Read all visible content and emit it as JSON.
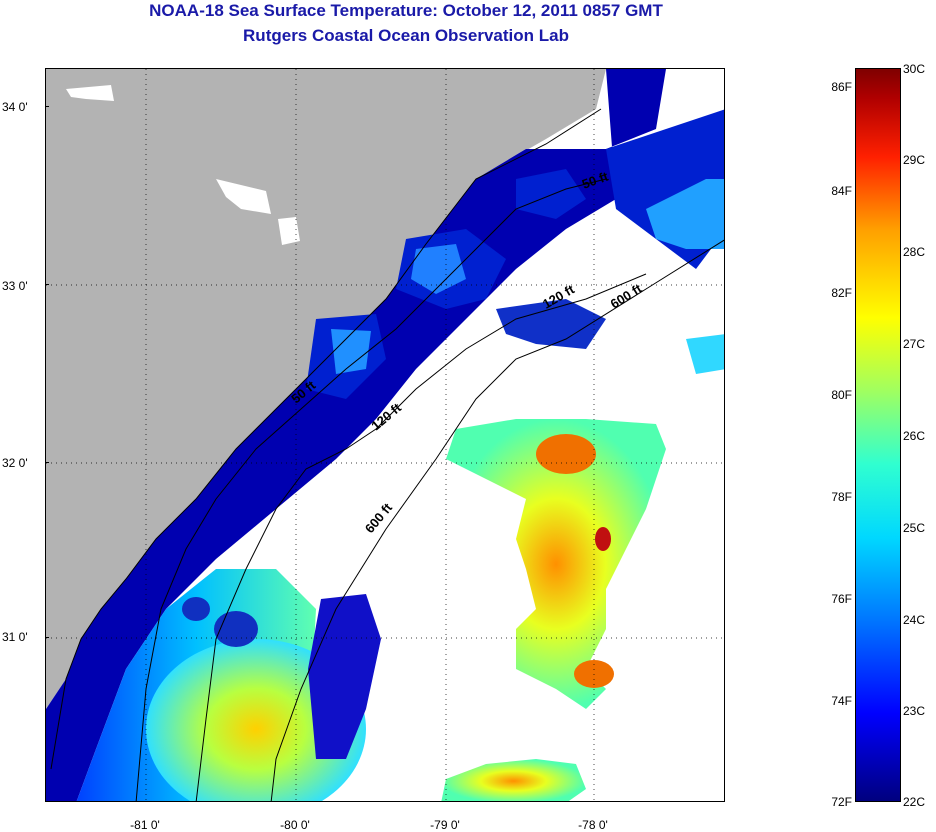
{
  "header": {
    "title": "NOAA-18 Sea Surface Temperature:  October 12, 2011 0857 GMT",
    "subtitle": "Rutgers Coastal Ocean Observation Lab"
  },
  "map": {
    "latitude_labels": [
      "34 0'",
      "33 0'",
      "32 0'",
      "31 0'"
    ],
    "longitude_labels": [
      "-81 0'",
      "-80 0'",
      "-79 0'",
      "-78 0'"
    ],
    "isobath_labels": [
      "50 ft",
      "120 ft",
      "600 ft",
      "50 ft",
      "120 ft",
      "600 ft"
    ],
    "colors": {
      "land": "#b3b3b3",
      "cloud_mask": "#ffffff",
      "isobath": "#000000",
      "coastline": "#000000"
    }
  },
  "colorbar": {
    "fahrenheit_labels": [
      "86F",
      "84F",
      "82F",
      "80F",
      "78F",
      "76F",
      "74F",
      "72F"
    ],
    "celsius_labels": [
      "30C",
      "29C",
      "28C",
      "27C",
      "26C",
      "25C",
      "24C",
      "23C",
      "22C"
    ],
    "range_celsius": [
      22,
      30
    ],
    "range_fahrenheit": [
      72,
      86
    ],
    "colormap": "jet"
  }
}
